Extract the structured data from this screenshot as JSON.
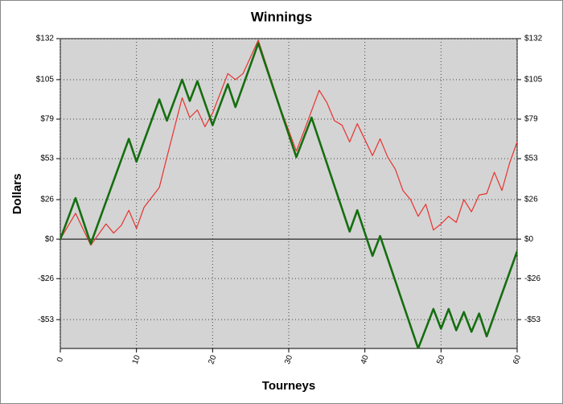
{
  "chart_data": {
    "type": "line",
    "title": "Winnings",
    "x_label": "Tourneys",
    "y_label": "Dollars",
    "xlim": [
      0,
      60
    ],
    "xticks": [
      0,
      10,
      20,
      30,
      40,
      50,
      60
    ],
    "ylim": [
      -72,
      132
    ],
    "yticks": [
      {
        "value": -53,
        "label": "-$53"
      },
      {
        "value": -26,
        "label": "-$26"
      },
      {
        "value": 0,
        "label": "$0"
      },
      {
        "value": 26,
        "label": "$26"
      },
      {
        "value": 53,
        "label": "$53"
      },
      {
        "value": 79,
        "label": "$79"
      },
      {
        "value": 105,
        "label": "$105"
      },
      {
        "value": 132,
        "label": "$132"
      }
    ],
    "grid": true,
    "background": "#d4d4d4",
    "series": [
      {
        "color": "#e8322f",
        "width": 1.2,
        "x": [
          0,
          2,
          4,
          6,
          7,
          8,
          9,
          10,
          11,
          13,
          14,
          16,
          17,
          18,
          19,
          20,
          22,
          23,
          24,
          26,
          29,
          31,
          32,
          34,
          35,
          36,
          37,
          38,
          39,
          41,
          42,
          43,
          44,
          45,
          46,
          47,
          48,
          49,
          50,
          51,
          52,
          53,
          54,
          55,
          56,
          57,
          58,
          59,
          60
        ],
        "values": [
          0,
          17,
          -4,
          10,
          4,
          9,
          19,
          7,
          21,
          34,
          54,
          93,
          80,
          85,
          74,
          83,
          109,
          105,
          109,
          131,
          85,
          58,
          71,
          98,
          90,
          78,
          75,
          64,
          76,
          55,
          66,
          54,
          46,
          32,
          26,
          15,
          23,
          6,
          10,
          15,
          11,
          26,
          18,
          29,
          30,
          44,
          32,
          50,
          64
        ]
      },
      {
        "color": "#156e10",
        "width": 2.6,
        "x": [
          0,
          2,
          4,
          9,
          10,
          13,
          14,
          16,
          17,
          18,
          20,
          22,
          23,
          26,
          31,
          33,
          38,
          39,
          41,
          42,
          47,
          49,
          50,
          51,
          52,
          53,
          54,
          55,
          56,
          60
        ],
        "values": [
          0,
          27,
          -3,
          66,
          51,
          92,
          78,
          105,
          91,
          104,
          75,
          102,
          87,
          129,
          54,
          80,
          5,
          19,
          -11,
          2,
          -72,
          -46,
          -59,
          -46,
          -60,
          -48,
          -61,
          -49,
          -64,
          -8
        ]
      }
    ]
  }
}
